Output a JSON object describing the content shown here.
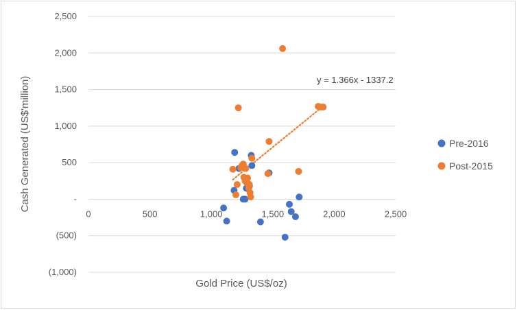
{
  "chart_data": {
    "type": "scatter",
    "title": "",
    "xlabel": "Gold Price (US$/oz)",
    "ylabel": "Cash Generated (US$'million)",
    "xlim": [
      0,
      2500
    ],
    "ylim": [
      -1000,
      2500
    ],
    "x_ticks": [
      0,
      500,
      1000,
      1500,
      2000,
      2500
    ],
    "y_ticks": [
      -1000,
      -500,
      0,
      500,
      1000,
      1500,
      2000,
      2500
    ],
    "x_tick_labels": [
      "0",
      "500",
      "1,000",
      "1,500",
      "2,000",
      "2,500"
    ],
    "y_tick_labels": [
      "(1,000)",
      "(500)",
      "-",
      "500",
      "1,000",
      "1,500",
      "2,000",
      "2,500"
    ],
    "grid": "horizontal",
    "legend": "right",
    "series": [
      {
        "name": "Pre-2016",
        "color": "#4472c4",
        "points": [
          [
            1100,
            -120
          ],
          [
            1125,
            -300
          ],
          [
            1190,
            640
          ],
          [
            1185,
            120
          ],
          [
            1225,
            420
          ],
          [
            1260,
            0
          ],
          [
            1275,
            0
          ],
          [
            1285,
            150
          ],
          [
            1295,
            220
          ],
          [
            1310,
            180
          ],
          [
            1325,
            600
          ],
          [
            1330,
            460
          ],
          [
            1400,
            -310
          ],
          [
            1470,
            360
          ],
          [
            1600,
            -520
          ],
          [
            1635,
            -70
          ],
          [
            1650,
            -170
          ],
          [
            1685,
            -240
          ],
          [
            1715,
            30
          ]
        ]
      },
      {
        "name": "Post-2015",
        "color": "#ed7d31",
        "points": [
          [
            1175,
            410
          ],
          [
            1200,
            60
          ],
          [
            1210,
            200
          ],
          [
            1220,
            1250
          ],
          [
            1240,
            430
          ],
          [
            1250,
            460
          ],
          [
            1260,
            480
          ],
          [
            1265,
            300
          ],
          [
            1275,
            250
          ],
          [
            1280,
            420
          ],
          [
            1285,
            270
          ],
          [
            1290,
            220
          ],
          [
            1295,
            290
          ],
          [
            1305,
            150
          ],
          [
            1310,
            200
          ],
          [
            1315,
            90
          ],
          [
            1320,
            30
          ],
          [
            1330,
            560
          ],
          [
            1460,
            350
          ],
          [
            1470,
            790
          ],
          [
            1580,
            2060
          ],
          [
            1710,
            380
          ],
          [
            1870,
            1270
          ],
          [
            1890,
            1260
          ],
          [
            1910,
            1260
          ]
        ]
      }
    ],
    "trendline": {
      "series": "Post-2015",
      "color": "#ed7d31",
      "slope": 1.366,
      "intercept": -1337.2,
      "x_range": [
        1175,
        1910
      ],
      "label": "y = 1.366x - 1337.2"
    }
  }
}
